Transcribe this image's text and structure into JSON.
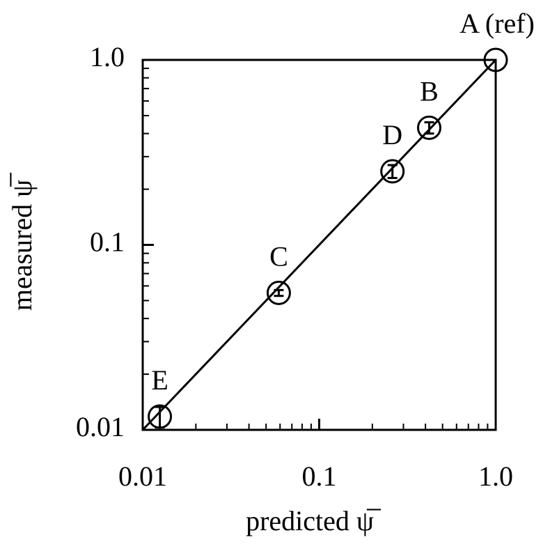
{
  "chart_data": {
    "type": "scatter",
    "x_label": "predicted ψ̅",
    "y_label": "measured ψ̅",
    "series": [
      {
        "color": "#000000",
        "labels": [
          "A (ref)",
          "B",
          "D",
          "C",
          "E"
        ],
        "x": [
          1,
          0.42,
          0.26,
          0.059,
          0.0125
        ],
        "values": [
          1,
          0.43,
          0.25,
          0.055,
          0.0118
        ],
        "errors": [
          null,
          0.03,
          0.02,
          0.002,
          0.0015
        ]
      }
    ],
    "reference_line": {
      "x": [
        0.01,
        1
      ],
      "y": [
        0.01,
        1
      ]
    },
    "log_x": true,
    "log_y": true,
    "xlim": [
      0.01,
      1
    ],
    "ylim": [
      0.01,
      1
    ],
    "xticks": [
      0.01,
      0.1,
      {
        "value": 1,
        "label": "1.0"
      }
    ],
    "yticks": [
      0.01,
      0.1,
      {
        "value": 1,
        "label": "1.0"
      }
    ],
    "xminorticks": [
      0.02,
      0.03,
      0.04,
      0.05,
      0.06,
      0.07,
      0.08,
      0.09,
      0.2,
      0.3,
      0.4,
      0.5,
      0.6,
      0.7,
      0.8,
      0.9
    ],
    "yminorticks": [
      0.02,
      0.03,
      0.04,
      0.05,
      0.06,
      0.07,
      0.08,
      0.09,
      0.2,
      0.3,
      0.4,
      0.5,
      0.6,
      0.7,
      0.8,
      0.9
    ]
  }
}
